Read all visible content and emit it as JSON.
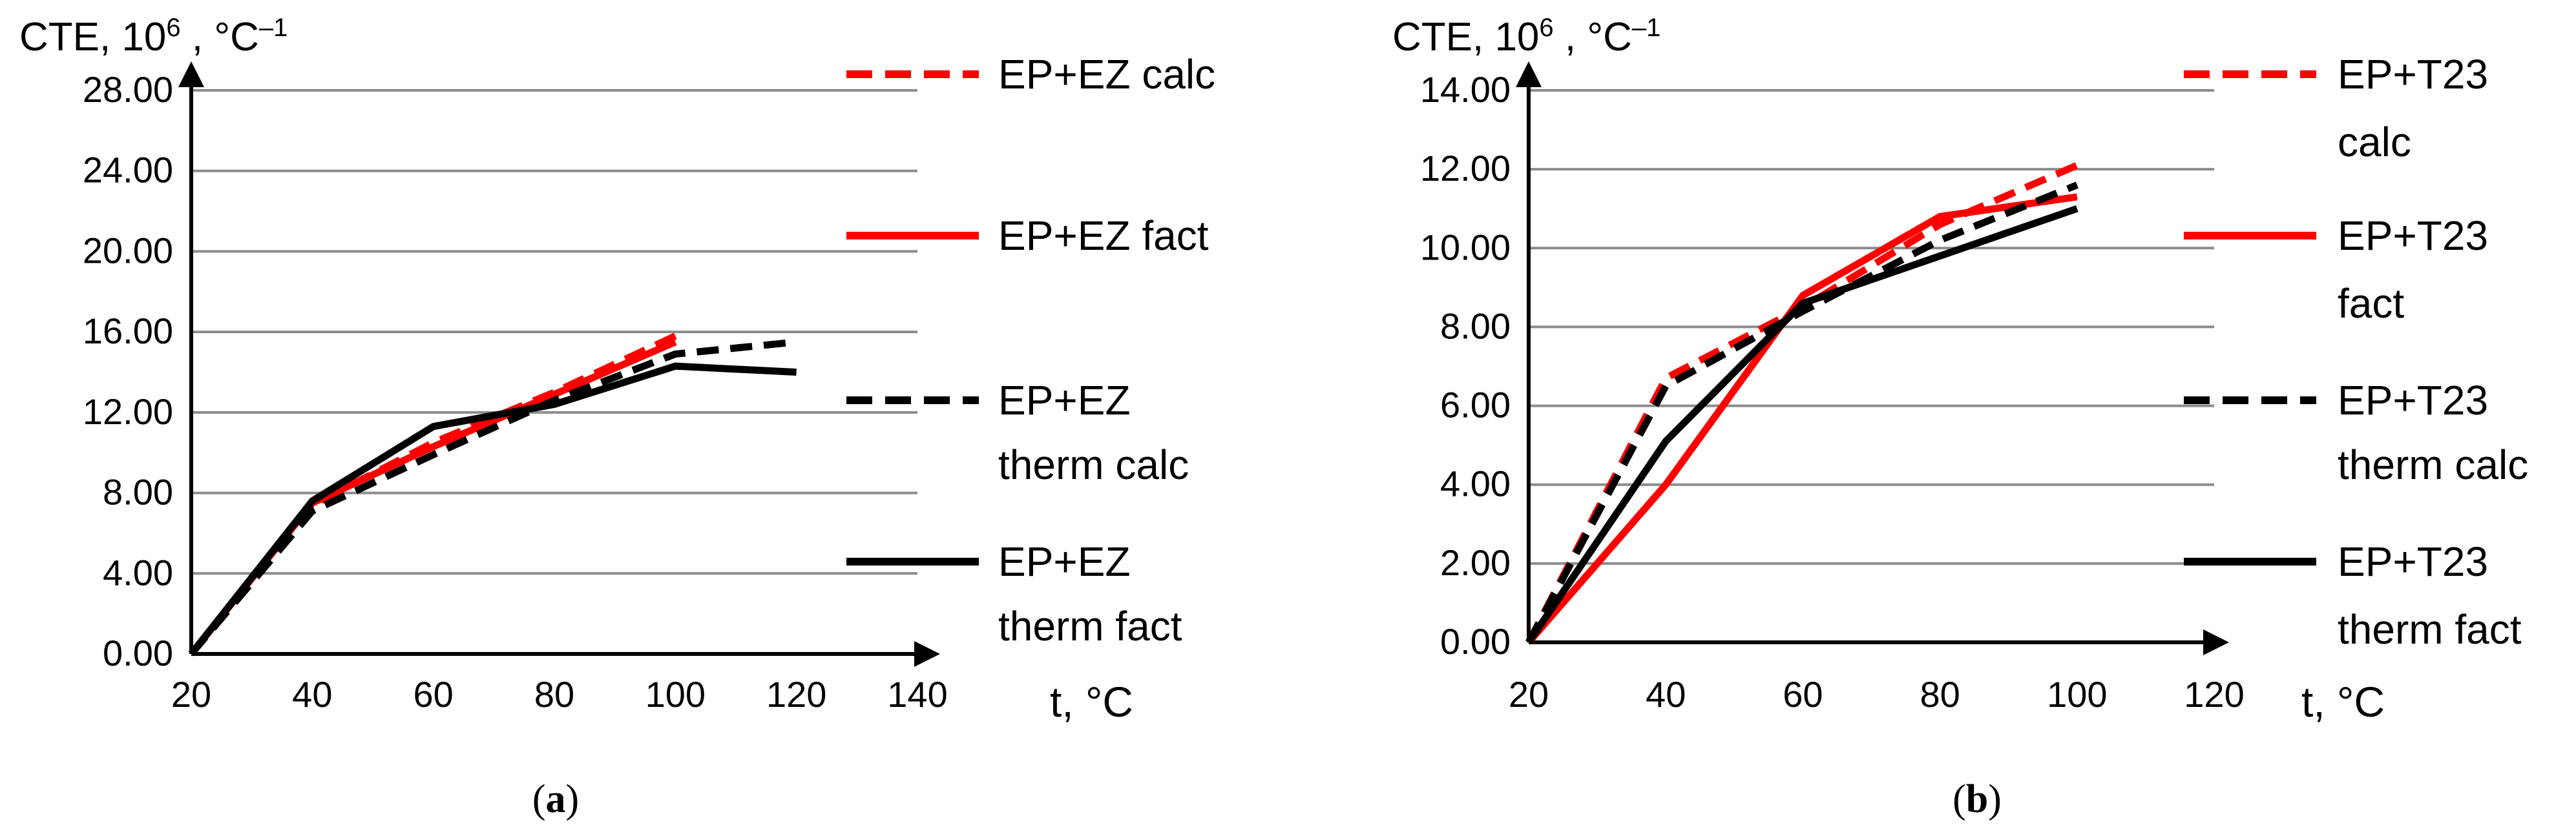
{
  "chart_data": [
    {
      "type": "line",
      "panel_label": "a",
      "ylabel_main": "CTE, 10",
      "ylabel_sup1": "6",
      "ylabel_rest": " , °C",
      "ylabel_sup2": "–1",
      "xlabel": "t, °C",
      "ylim": [
        0,
        28
      ],
      "xlim": [
        20,
        140
      ],
      "y_ticks": [
        "0.00",
        "4.00",
        "8.00",
        "12.00",
        "16.00",
        "20.00",
        "24.00",
        "28.00"
      ],
      "x_ticks": [
        "20",
        "40",
        "60",
        "80",
        "100",
        "120",
        "140"
      ],
      "series": [
        {
          "name": [
            "EP+EZ calc"
          ],
          "color": "#ff0000",
          "dashed": true,
          "x": [
            20,
            40,
            60,
            80,
            100
          ],
          "values": [
            0,
            7.4,
            10.5,
            13.0,
            15.8
          ]
        },
        {
          "name": [
            "EP+EZ fact"
          ],
          "color": "#ff0000",
          "dashed": false,
          "x": [
            20,
            40,
            60,
            80,
            100
          ],
          "values": [
            0,
            7.5,
            10.3,
            12.9,
            15.5
          ]
        },
        {
          "name": [
            "EP+EZ",
            "therm calc"
          ],
          "color": "#000000",
          "dashed": true,
          "x": [
            20,
            40,
            60,
            80,
            100,
            120
          ],
          "values": [
            0,
            7.1,
            9.9,
            12.6,
            14.9,
            15.5
          ]
        },
        {
          "name": [
            "EP+EZ",
            "therm fact"
          ],
          "color": "#000000",
          "dashed": false,
          "x": [
            20,
            40,
            60,
            80,
            100,
            120
          ],
          "values": [
            0,
            7.6,
            11.3,
            12.4,
            14.3,
            14.0
          ]
        }
      ]
    },
    {
      "type": "line",
      "panel_label": "b",
      "ylabel_main": "CTE, 10",
      "ylabel_sup1": "6",
      "ylabel_rest": " , °C",
      "ylabel_sup2": "–1",
      "xlabel": "t, °C",
      "ylim": [
        0,
        14
      ],
      "xlim": [
        20,
        120
      ],
      "y_ticks": [
        "0.00",
        "2.00",
        "4.00",
        "6.00",
        "8.00",
        "10.00",
        "12.00",
        "14.00"
      ],
      "x_ticks": [
        "20",
        "40",
        "60",
        "80",
        "100",
        "120"
      ],
      "series": [
        {
          "name": [
            "EP+T23",
            "calc"
          ],
          "color": "#ff0000",
          "dashed": true,
          "x": [
            20,
            40,
            60,
            80,
            100
          ],
          "values": [
            0,
            6.7,
            8.5,
            10.6,
            12.1
          ]
        },
        {
          "name": [
            "EP+T23",
            "fact"
          ],
          "color": "#ff0000",
          "dashed": false,
          "x": [
            20,
            40,
            60,
            80,
            100
          ],
          "values": [
            0,
            4.0,
            8.8,
            10.8,
            11.3
          ]
        },
        {
          "name": [
            "EP+T23",
            "therm calc"
          ],
          "color": "#000000",
          "dashed": true,
          "x": [
            20,
            40,
            60,
            80,
            100
          ],
          "values": [
            0,
            6.5,
            8.4,
            10.2,
            11.6
          ]
        },
        {
          "name": [
            "EP+T23",
            "therm fact"
          ],
          "color": "#000000",
          "dashed": false,
          "x": [
            20,
            40,
            60,
            80,
            100
          ],
          "values": [
            0,
            5.1,
            8.6,
            9.8,
            11.0
          ]
        }
      ]
    }
  ]
}
